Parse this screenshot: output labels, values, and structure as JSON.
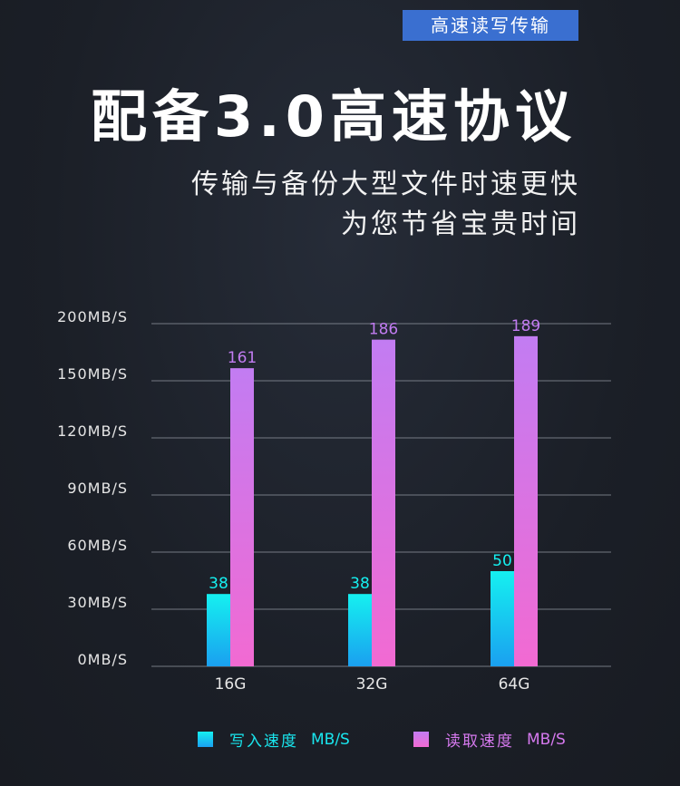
{
  "header": {
    "badge": "高速读写传输",
    "title": "配备3.0高速协议",
    "subtitle_line1": "传输与备份大型文件时速更快",
    "subtitle_line2": "为您节省宝贵时间"
  },
  "colors": {
    "write_top": "#15f0f0",
    "write_bottom": "#1aa0f0",
    "read_top": "#c27cf2",
    "read_bottom": "#f26ad2",
    "grid": "#9aa0aa",
    "axis_text": "#e6e6e6",
    "badge_bg": "#3a6fd0"
  },
  "legend": {
    "write_label": "写入速度",
    "write_unit": "MB/S",
    "read_label": "读取速度",
    "read_unit": "MB/S"
  },
  "chart_data": {
    "type": "bar",
    "categories": [
      "16G",
      "32G",
      "64G"
    ],
    "y_ticks": [
      {
        "label": "200MB/S",
        "value": 200
      },
      {
        "label": "150MB/S",
        "value": 150
      },
      {
        "label": "120MB/S",
        "value": 120
      },
      {
        "label": "90MB/S",
        "value": 90
      },
      {
        "label": "60MB/S",
        "value": 60
      },
      {
        "label": "30MB/S",
        "value": 30
      },
      {
        "label": "0MB/S",
        "value": 0
      }
    ],
    "series": [
      {
        "name": "写入速度 MB/S",
        "values": [
          38,
          38,
          50
        ]
      },
      {
        "name": "读取速度 MB/S",
        "values": [
          161,
          186,
          189
        ]
      }
    ],
    "ylim": [
      0,
      200
    ],
    "grid": true,
    "legend_position": "bottom"
  }
}
